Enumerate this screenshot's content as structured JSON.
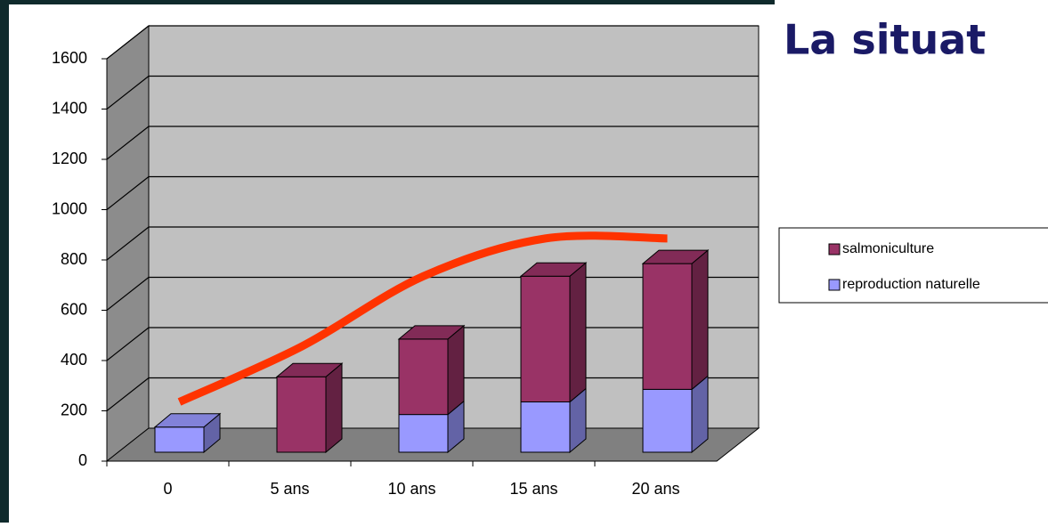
{
  "chart_data": {
    "type": "bar",
    "stacked": true,
    "three_d": true,
    "title": "La situat",
    "categories": [
      "0",
      "5 ans",
      "10 ans",
      "15 ans",
      "20 ans"
    ],
    "series": [
      {
        "name": "reproduction naturelle",
        "color": "#9999ff",
        "values": [
          100,
          0,
          150,
          200,
          250
        ]
      },
      {
        "name": "salmoniculture",
        "color": "#993366",
        "values": [
          0,
          300,
          300,
          500,
          500
        ]
      }
    ],
    "overlay_line": {
      "color": "#ff3300",
      "values": [
        200,
        420,
        700,
        850,
        850
      ]
    },
    "ylim": [
      0,
      1600
    ],
    "yticks": [
      0,
      200,
      400,
      600,
      800,
      1000,
      1200,
      1400,
      1600
    ],
    "grid": true,
    "legend": "right"
  }
}
